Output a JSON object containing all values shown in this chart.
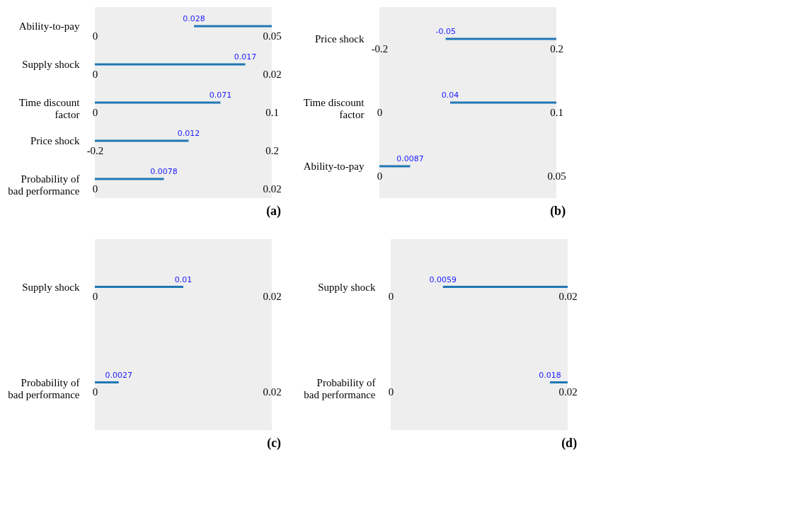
{
  "chart_data": [
    {
      "type": "bar",
      "orientation": "horizontal",
      "categories": [
        "Ability-to-pay"
      ],
      "base": [
        0.028
      ],
      "values": [
        0.022
      ],
      "color": "#1f77b4",
      "xlim": [
        0,
        0.05
      ],
      "xticks": [
        0,
        0.05
      ],
      "annotations": [
        "0.028"
      ]
    },
    {
      "type": "bar",
      "orientation": "horizontal",
      "categories": [
        "Supply shock"
      ],
      "base": [
        0
      ],
      "values": [
        0.017
      ],
      "color": "#1f77b4",
      "xlim": [
        0,
        0.02
      ],
      "xticks": [
        0,
        0.02
      ],
      "annotations": [
        "0.017"
      ]
    },
    {
      "type": "bar",
      "orientation": "horizontal",
      "categories": [
        "Time discount factor"
      ],
      "base": [
        0
      ],
      "values": [
        0.071
      ],
      "color": "#1f77b4",
      "xlim": [
        0,
        0.1
      ],
      "xticks": [
        0,
        0.1
      ],
      "annotations": [
        "0.071"
      ]
    },
    {
      "type": "bar",
      "orientation": "horizontal",
      "categories": [
        "Price shock"
      ],
      "base": [
        -0.2
      ],
      "values": [
        0.212
      ],
      "color": "#1f77b4",
      "xlim": [
        -0.2,
        0.2
      ],
      "xticks": [
        -0.2,
        0.2
      ],
      "annotations": [
        "0.012"
      ]
    },
    {
      "type": "bar",
      "orientation": "horizontal",
      "title": "(a)",
      "categories": [
        "Probability of bad performance"
      ],
      "base": [
        0
      ],
      "values": [
        0.0078
      ],
      "color": "#1f77b4",
      "xlim": [
        0,
        0.02
      ],
      "xticks": [
        0,
        0.02
      ],
      "annotations": [
        "0.0078"
      ]
    },
    {
      "type": "bar",
      "orientation": "horizontal",
      "categories": [
        "Price shock"
      ],
      "base": [
        -0.05
      ],
      "values": [
        0.25
      ],
      "color": "#1f77b4",
      "xlim": [
        -0.2,
        0.2
      ],
      "xticks": [
        -0.2,
        0.2
      ],
      "annotations": [
        "-0.05"
      ]
    },
    {
      "type": "bar",
      "orientation": "horizontal",
      "categories": [
        "Time discount factor"
      ],
      "base": [
        0.04
      ],
      "values": [
        0.06
      ],
      "color": "#1f77b4",
      "xlim": [
        0,
        0.1
      ],
      "xticks": [
        0,
        0.1
      ],
      "annotations": [
        "0.04"
      ]
    },
    {
      "type": "bar",
      "orientation": "horizontal",
      "title": "(b)",
      "categories": [
        "Ability-to-pay"
      ],
      "base": [
        0
      ],
      "values": [
        0.0087
      ],
      "color": "#1f77b4",
      "xlim": [
        0,
        0.05
      ],
      "xticks": [
        0,
        0.05
      ],
      "annotations": [
        "0.0087"
      ]
    },
    {
      "type": "bar",
      "orientation": "horizontal",
      "categories": [
        "Supply shock"
      ],
      "base": [
        0
      ],
      "values": [
        0.01
      ],
      "color": "#1f77b4",
      "xlim": [
        0,
        0.02
      ],
      "xticks": [
        0,
        0.02
      ],
      "annotations": [
        "0.01"
      ]
    },
    {
      "type": "bar",
      "orientation": "horizontal",
      "title": "(c)",
      "categories": [
        "Probability of bad performance"
      ],
      "base": [
        0
      ],
      "values": [
        0.0027
      ],
      "color": "#1f77b4",
      "xlim": [
        0,
        0.02
      ],
      "xticks": [
        0,
        0.02
      ],
      "annotations": [
        "0.0027"
      ]
    },
    {
      "type": "bar",
      "orientation": "horizontal",
      "categories": [
        "Supply shock"
      ],
      "base": [
        0.0059
      ],
      "values": [
        0.0141
      ],
      "color": "#1f77b4",
      "xlim": [
        0,
        0.02
      ],
      "xticks": [
        0,
        0.02
      ],
      "annotations": [
        "0.0059"
      ]
    },
    {
      "type": "bar",
      "orientation": "horizontal",
      "title": "(d)",
      "categories": [
        "Probability of bad performance"
      ],
      "base": [
        0.018
      ],
      "values": [
        0.002
      ],
      "color": "#1f77b4",
      "xlim": [
        0,
        0.02
      ],
      "xticks": [
        0,
        0.02
      ],
      "annotations": [
        "0.018"
      ]
    }
  ]
}
